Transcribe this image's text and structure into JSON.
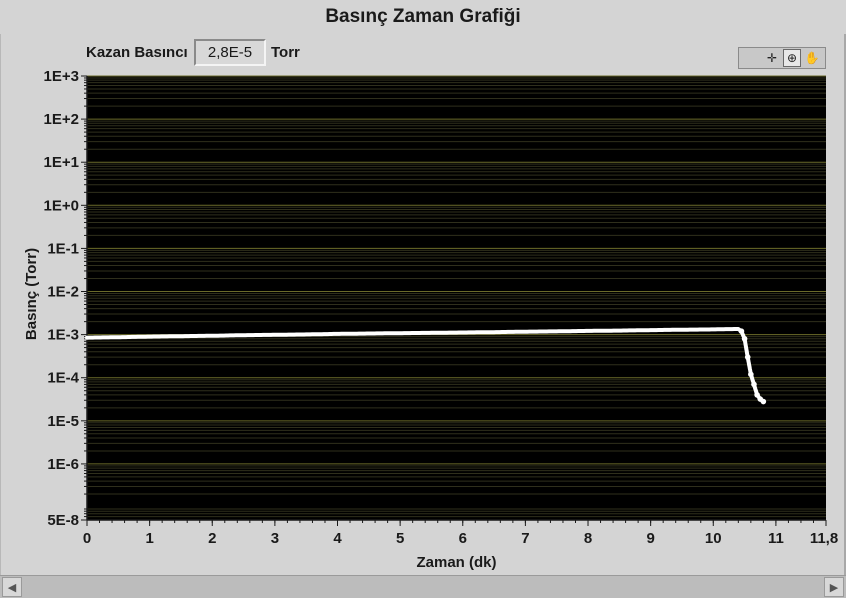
{
  "chart_data": {
    "type": "scatter",
    "title": "Basınç Zaman Grafiği",
    "xlabel": "Zaman (dk)",
    "ylabel": "Basınç (Torr)",
    "xlim": [
      0,
      11.8
    ],
    "ylim": [
      5e-08,
      1000
    ],
    "y_scale": "log",
    "grid": true,
    "x_ticks": [
      "0",
      "1",
      "2",
      "3",
      "4",
      "5",
      "6",
      "7",
      "8",
      "9",
      "10",
      "11",
      "11,8"
    ],
    "x_tick_values": [
      0,
      1,
      2,
      3,
      4,
      5,
      6,
      7,
      8,
      9,
      10,
      11,
      11.8
    ],
    "y_ticks": [
      "1E+3",
      "1E+2",
      "1E+1",
      "1E+0",
      "1E-1",
      "1E-2",
      "1E-3",
      "1E-4",
      "1E-5",
      "1E-6",
      "5E-8"
    ],
    "y_tick_values": [
      1000,
      100,
      10,
      1,
      0.1,
      0.01,
      0.001,
      0.0001,
      1e-05,
      1e-06,
      5e-08
    ],
    "series": [
      {
        "x": [
          0,
          0.5,
          1,
          1.5,
          2,
          2.5,
          3,
          3.5,
          4,
          4.5,
          5,
          5.5,
          6,
          6.5,
          7,
          7.5,
          8,
          8.5,
          9,
          9.5,
          10,
          10.2,
          10.4,
          10.45,
          10.5,
          10.55,
          10.6,
          10.65,
          10.7,
          10.75,
          10.8
        ],
        "y": [
          0.00085,
          0.00087,
          0.0009,
          0.00092,
          0.00094,
          0.00097,
          0.00099,
          0.00101,
          0.00104,
          0.00106,
          0.00108,
          0.0011,
          0.00112,
          0.00114,
          0.00117,
          0.00119,
          0.00122,
          0.00124,
          0.00127,
          0.0013,
          0.00132,
          0.00134,
          0.00135,
          0.0012,
          0.0008,
          0.0003,
          0.00012,
          7e-05,
          4e-05,
          3.2e-05,
          2.8e-05
        ]
      }
    ]
  },
  "readout": {
    "label": "Kazan Basıncı",
    "value": "2,8E-5",
    "unit": "Torr"
  },
  "palette": {
    "icons": [
      "crosshair-icon",
      "zoom-icon",
      "pan-hand-icon"
    ],
    "glyphs": [
      "✛",
      "⊕",
      "✋"
    ]
  },
  "scrollbar": {
    "left_glyph": "◀",
    "right_glyph": "▶"
  },
  "colors": {
    "plot_background": "#000000",
    "grid_major": "#6b6b2a",
    "grid_minor": "#2f2f1c",
    "series": "#ffffff"
  }
}
